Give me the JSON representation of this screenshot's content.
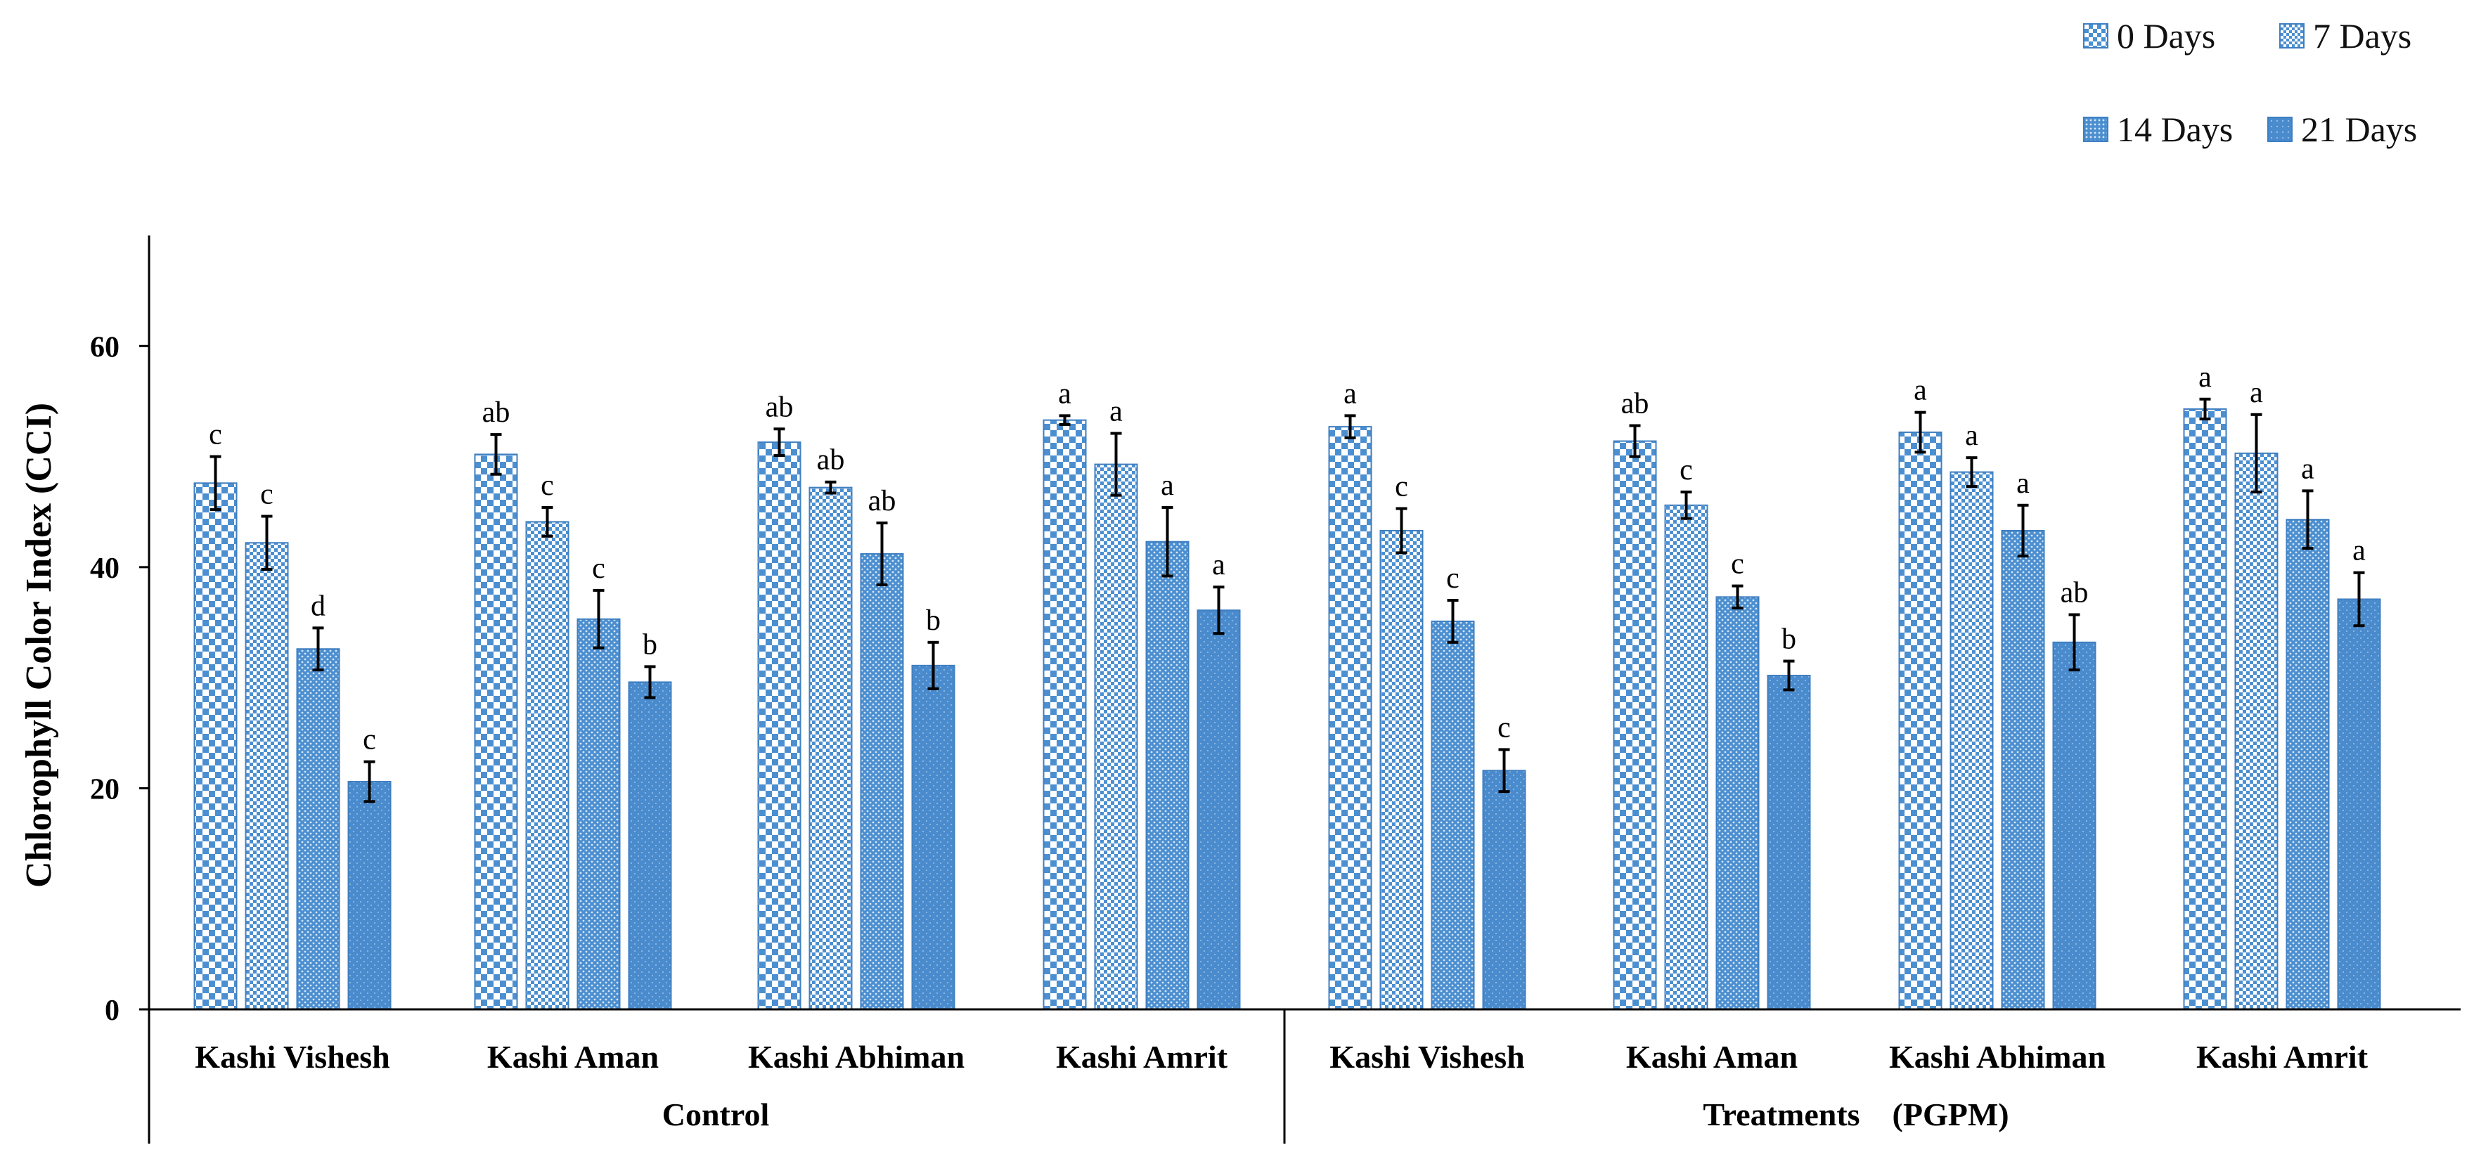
{
  "chart_data": {
    "type": "bar",
    "title": "",
    "ylabel": "Chlorophyll Color Index (CCI)",
    "xlabel": "",
    "ylim": [
      0,
      70
    ],
    "yticks": [
      0,
      20,
      40,
      60
    ],
    "grid": false,
    "legend_position": "top-right",
    "groups": [
      "Control",
      "Treatments    (PGPM)"
    ],
    "categories": [
      "Kashi Vishesh",
      "Kashi Aman",
      "Kashi Abhiman",
      "Kashi Amrit",
      "Kashi Vishesh",
      "Kashi Aman",
      "Kashi Abhiman",
      "Kashi Amrit"
    ],
    "group_of_category": [
      0,
      0,
      0,
      0,
      1,
      1,
      1,
      1
    ],
    "series": [
      {
        "name": "0 Days",
        "pattern": "checker-large",
        "values": [
          47.6,
          50.2,
          51.3,
          53.3,
          52.7,
          51.4,
          52.2,
          54.3
        ],
        "errors": [
          2.4,
          1.8,
          1.2,
          0.4,
          1.0,
          1.4,
          1.8,
          0.9
        ],
        "labels": [
          "c",
          "ab",
          "ab",
          "a",
          "a",
          "ab",
          "a",
          "a"
        ]
      },
      {
        "name": "7 Days",
        "pattern": "checker-small",
        "values": [
          42.2,
          44.1,
          47.2,
          49.3,
          43.3,
          45.6,
          48.6,
          50.3
        ],
        "errors": [
          2.4,
          1.3,
          0.5,
          2.8,
          2.0,
          1.2,
          1.3,
          3.5
        ],
        "labels": [
          "c",
          "c",
          "ab",
          "a",
          "c",
          "c",
          "a",
          "a"
        ]
      },
      {
        "name": "14 Days",
        "pattern": "dotted",
        "values": [
          32.6,
          35.3,
          41.2,
          42.3,
          35.1,
          37.3,
          43.3,
          44.3
        ],
        "errors": [
          1.9,
          2.6,
          2.8,
          3.1,
          1.9,
          1.0,
          2.3,
          2.6
        ],
        "labels": [
          "d",
          "c",
          "ab",
          "a",
          "c",
          "c",
          "a",
          "a"
        ]
      },
      {
        "name": "21 Days",
        "pattern": "fine-dots",
        "values": [
          20.6,
          29.6,
          31.1,
          36.1,
          21.6,
          30.2,
          33.2,
          37.1
        ],
        "errors": [
          1.8,
          1.4,
          2.1,
          2.1,
          1.9,
          1.3,
          2.5,
          2.4
        ],
        "labels": [
          "c",
          "b",
          "b",
          "a",
          "c",
          "b",
          "ab",
          "a"
        ]
      }
    ]
  }
}
